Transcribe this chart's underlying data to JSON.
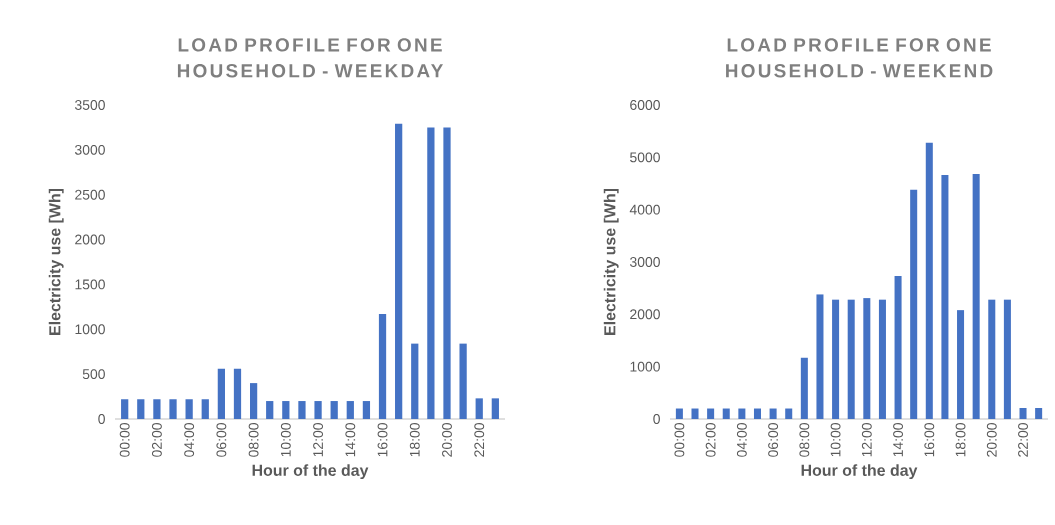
{
  "chart_data": [
    {
      "type": "bar",
      "title": "LOAD PROFILE FOR ONE HOUSEHOLD - WEEKDAY",
      "xlabel": "Hour of the day",
      "ylabel": "Electricity use  [Wh]",
      "categories": [
        "00:00",
        null,
        "02:00",
        null,
        "04:00",
        null,
        "06:00",
        null,
        "08:00",
        null,
        "10:00",
        null,
        "12:00",
        null,
        "14:00",
        null,
        "16:00",
        null,
        "18:00",
        null,
        "20:00",
        null,
        "22:00",
        null
      ],
      "values": [
        220,
        220,
        220,
        220,
        220,
        220,
        560,
        560,
        400,
        200,
        200,
        200,
        200,
        200,
        200,
        200,
        1170,
        3290,
        840,
        3250,
        3250,
        840,
        230,
        230
      ],
      "color": "#4472c4",
      "ylim": [
        0,
        3500
      ],
      "yticks": [
        0,
        500,
        1000,
        1500,
        2000,
        2500,
        3000,
        3500
      ]
    },
    {
      "type": "bar",
      "title": "LOAD PROFILE FOR ONE HOUSEHOLD - WEEKEND",
      "xlabel": "Hour of the day",
      "ylabel": "Electricity use  [Wh]",
      "categories": [
        "00:00",
        null,
        "02:00",
        null,
        "04:00",
        null,
        "06:00",
        null,
        "08:00",
        null,
        "10:00",
        null,
        "12:00",
        null,
        "14:00",
        null,
        "16:00",
        null,
        "18:00",
        null,
        "20:00",
        null,
        "22:00",
        null
      ],
      "values": [
        200,
        200,
        200,
        200,
        200,
        200,
        200,
        200,
        1170,
        2380,
        2280,
        2280,
        2310,
        2280,
        2730,
        4380,
        5280,
        4660,
        2080,
        4680,
        2280,
        2280,
        210,
        210
      ],
      "color": "#4472c4",
      "ylim": [
        0,
        6000
      ],
      "yticks": [
        0,
        1000,
        2000,
        3000,
        4000,
        5000,
        6000
      ]
    }
  ]
}
